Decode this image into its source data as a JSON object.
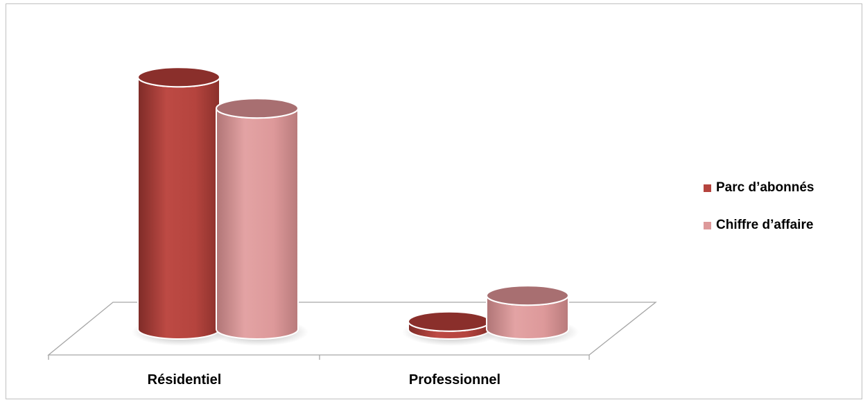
{
  "chart_data": {
    "type": "bar",
    "style": "3d-cylinder",
    "title": "",
    "xlabel": "",
    "ylabel": "",
    "categories": [
      "Résidentiel",
      "Professionnel"
    ],
    "series": [
      {
        "name": "Parc d’abonnés",
        "color": "#b5443e",
        "values": [
          97,
          3
        ]
      },
      {
        "name": "Chiffre d’affaire",
        "color": "#dd999a",
        "values": [
          85,
          13
        ]
      }
    ],
    "ylim": [
      0,
      100
    ],
    "grid": false,
    "legend_position": "right"
  }
}
